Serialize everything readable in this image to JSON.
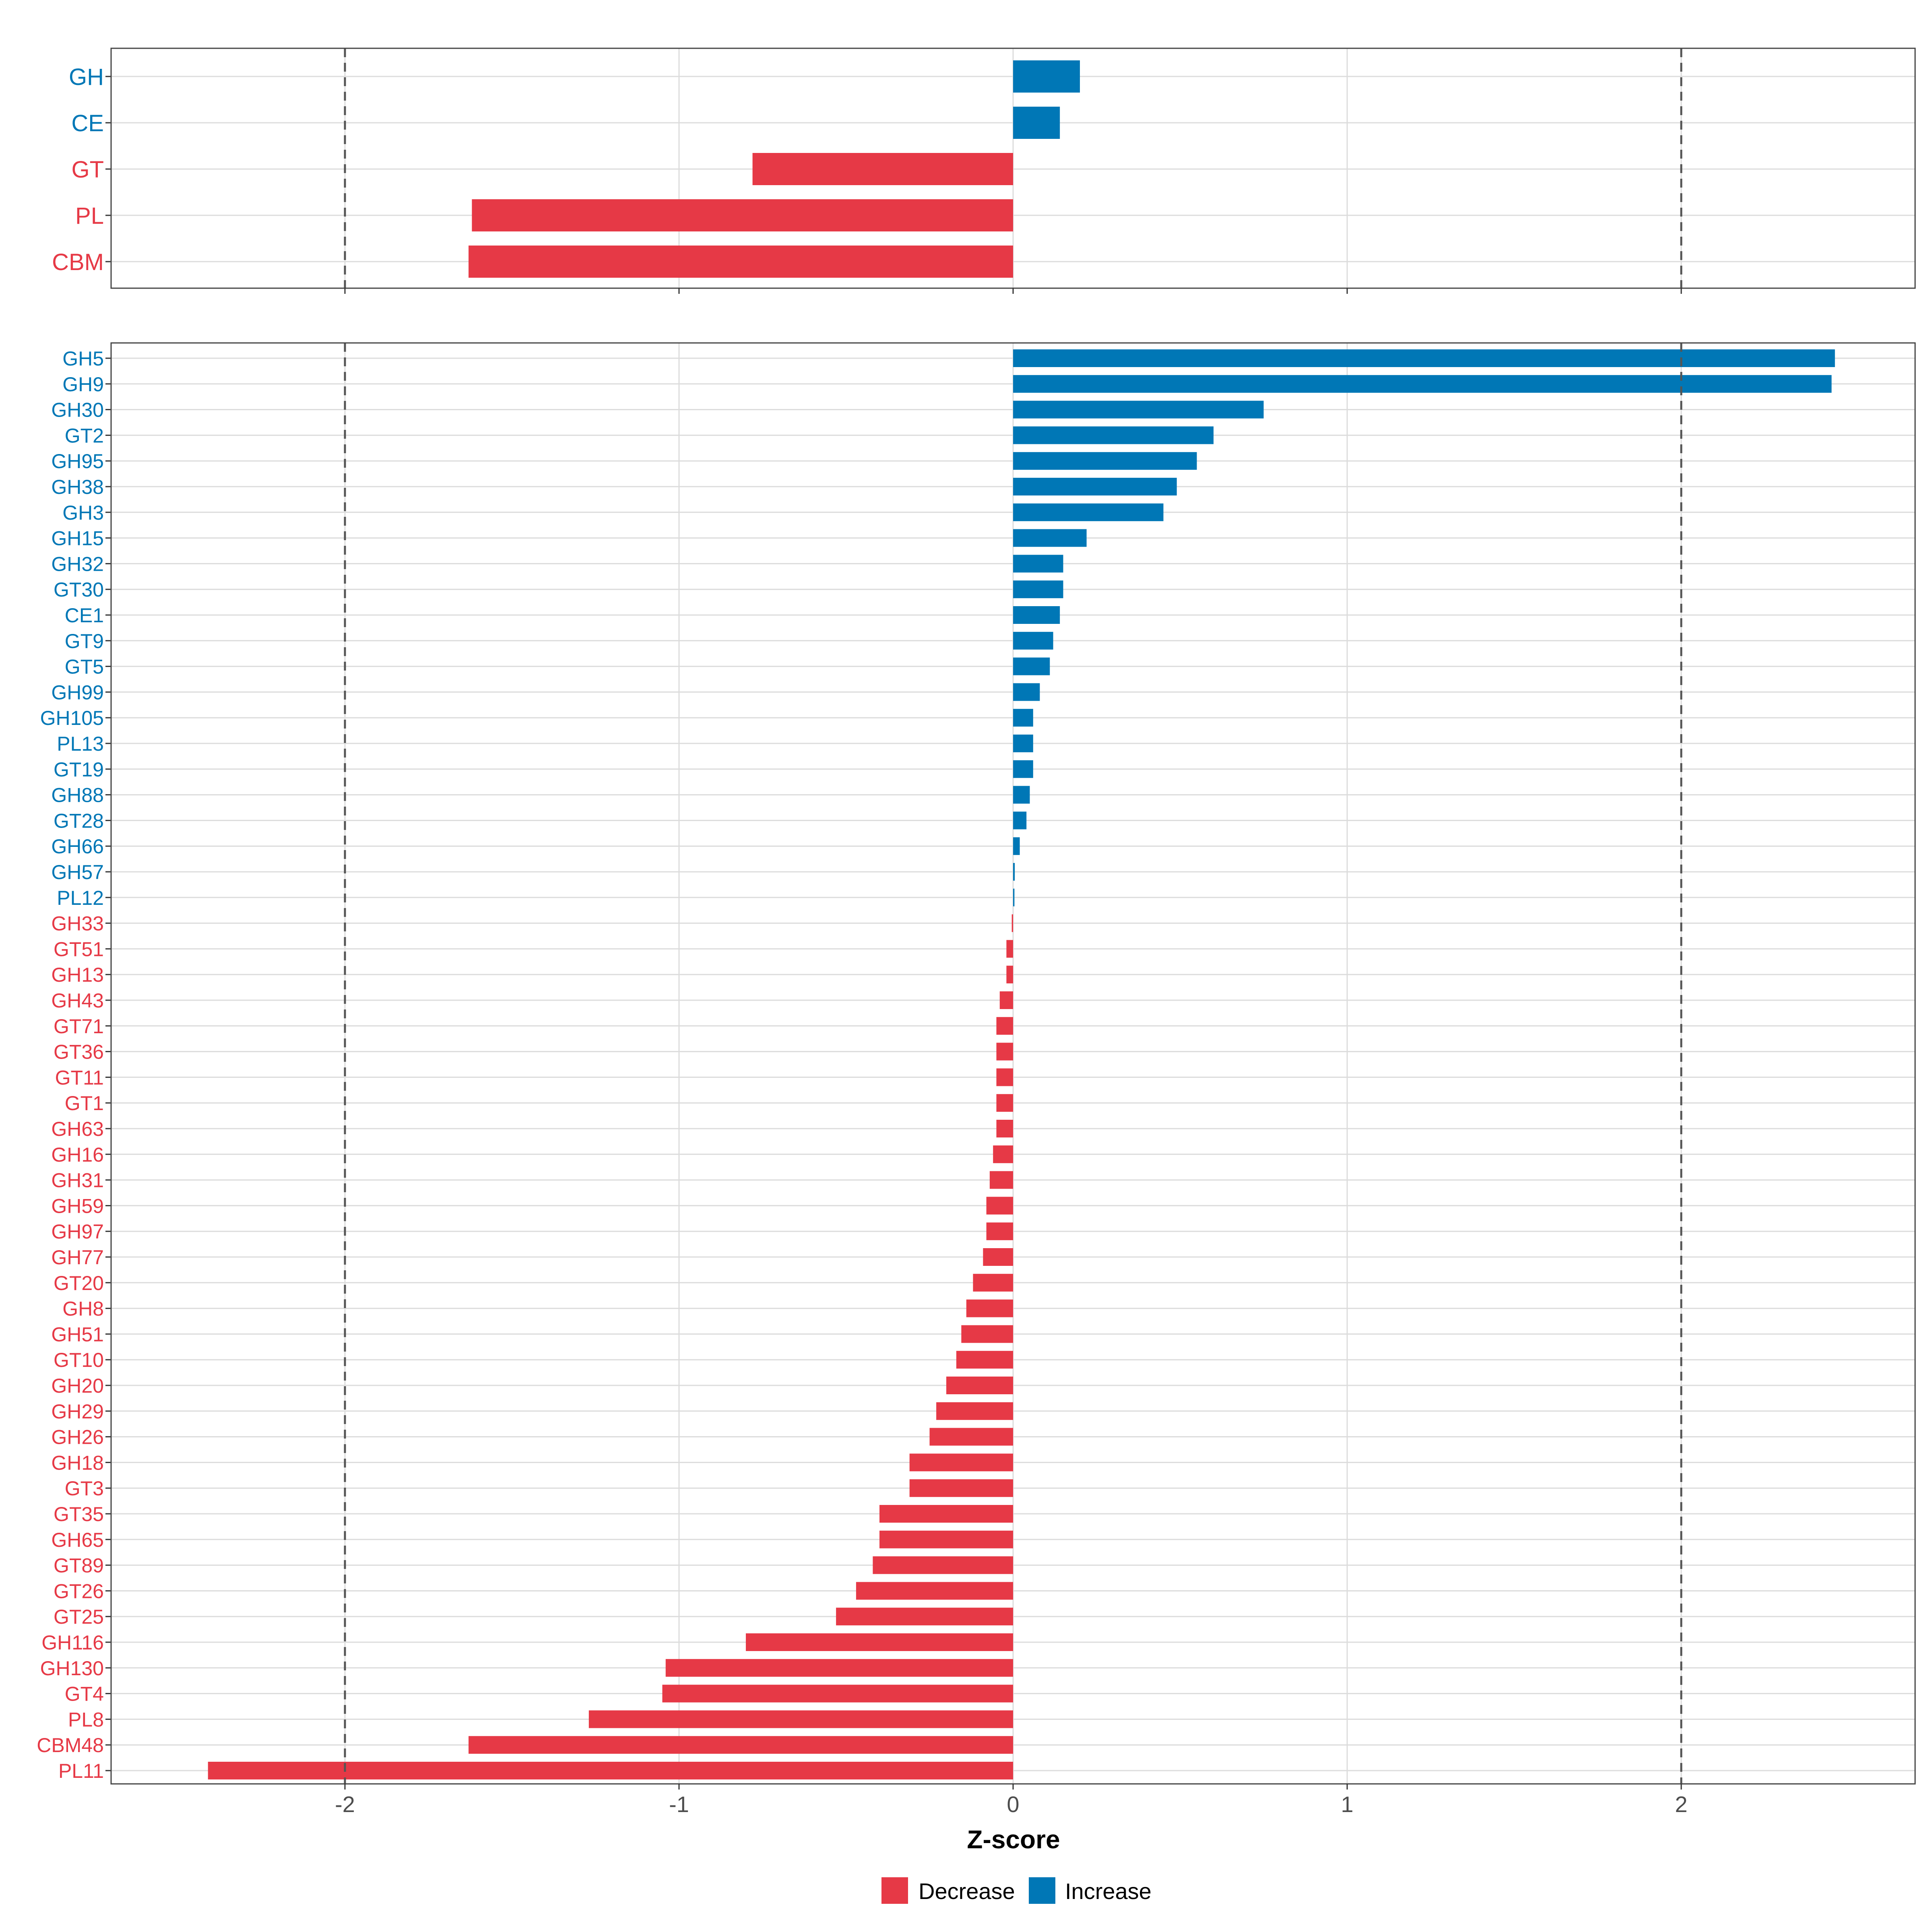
{
  "chart_data": [
    {
      "type": "bar",
      "orientation": "horizontal",
      "panel": "top",
      "categories": [
        "GH",
        "CE",
        "GT",
        "PL",
        "CBM"
      ],
      "values": [
        0.2,
        0.14,
        -0.78,
        -1.62,
        -1.63
      ],
      "xlim": [
        -2.7,
        2.7
      ],
      "reference_lines": [
        -2,
        2
      ],
      "grid": true
    },
    {
      "type": "bar",
      "orientation": "horizontal",
      "panel": "bottom",
      "categories": [
        "GH5",
        "GH9",
        "GH30",
        "GT2",
        "GH95",
        "GH38",
        "GH3",
        "GH15",
        "GH32",
        "GT30",
        "CE1",
        "GT9",
        "GT5",
        "GH99",
        "GH105",
        "PL13",
        "GT19",
        "GH88",
        "GT28",
        "GH66",
        "GH57",
        "PL12",
        "GH33",
        "GT51",
        "GH13",
        "GH43",
        "GT71",
        "GT36",
        "GT11",
        "GT1",
        "GH63",
        "GH16",
        "GH31",
        "GH59",
        "GH97",
        "GH77",
        "GT20",
        "GH8",
        "GH51",
        "GT10",
        "GH20",
        "GH29",
        "GH26",
        "GH18",
        "GT3",
        "GT35",
        "GH65",
        "GT89",
        "GT26",
        "GT25",
        "GH116",
        "GH130",
        "GT4",
        "PL8",
        "CBM48",
        "PL11"
      ],
      "values": [
        2.46,
        2.45,
        0.75,
        0.6,
        0.55,
        0.49,
        0.45,
        0.22,
        0.15,
        0.15,
        0.14,
        0.12,
        0.11,
        0.08,
        0.06,
        0.06,
        0.06,
        0.05,
        0.04,
        0.02,
        0.005,
        0.004,
        -0.004,
        -0.02,
        -0.02,
        -0.04,
        -0.05,
        -0.05,
        -0.05,
        -0.05,
        -0.05,
        -0.06,
        -0.07,
        -0.08,
        -0.08,
        -0.09,
        -0.12,
        -0.14,
        -0.155,
        -0.17,
        -0.2,
        -0.23,
        -0.25,
        -0.31,
        -0.31,
        -0.4,
        -0.4,
        -0.42,
        -0.47,
        -0.53,
        -0.8,
        -1.04,
        -1.05,
        -1.27,
        -1.63,
        -2.41
      ],
      "xlim": [
        -2.7,
        2.7
      ],
      "reference_lines": [
        -2,
        2
      ],
      "grid": true
    }
  ],
  "axis": {
    "xlabel": "Z-score",
    "ticks": [
      -2,
      -1,
      0,
      1,
      2
    ],
    "tick_labels": [
      "-2",
      "-1",
      "0",
      "1",
      "2"
    ]
  },
  "legend": {
    "position": "bottom",
    "items": [
      {
        "label": "Decrease",
        "color": "#e63946"
      },
      {
        "label": "Increase",
        "color": "#0077b6"
      }
    ]
  },
  "colors": {
    "decrease": "#e63946",
    "increase": "#0077b6",
    "grid": "#dcdcdc",
    "panel_border": "#444444",
    "refline": "#555555"
  }
}
